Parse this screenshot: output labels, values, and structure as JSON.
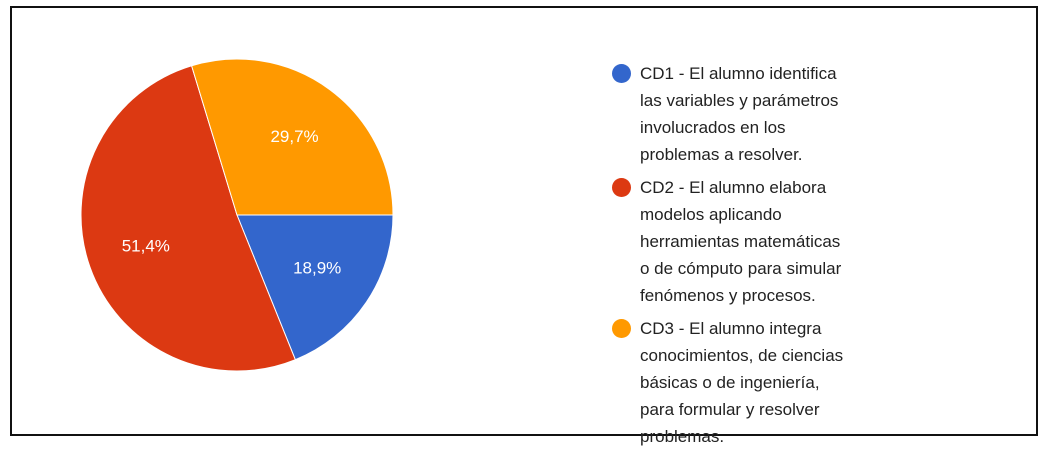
{
  "chart_data": {
    "type": "pie",
    "categories": [
      "CD1 - El alumno identifica las variables y parámetros involucrados en los problemas a resolver.",
      "CD2 - El alumno elabora modelos aplicando herramientas matemáticas o de cómputo para simular fenómenos y procesos.",
      "CD3 - El alumno integra conocimientos, de ciencias básicas o de ingeniería, para formular y resolver problemas."
    ],
    "values": [
      18.9,
      51.4,
      29.7
    ],
    "value_labels": [
      "18,9%",
      "51,4%",
      "29,7%"
    ],
    "colors": [
      "#3366cc",
      "#dc3912",
      "#ff9900"
    ],
    "legend": "right"
  }
}
